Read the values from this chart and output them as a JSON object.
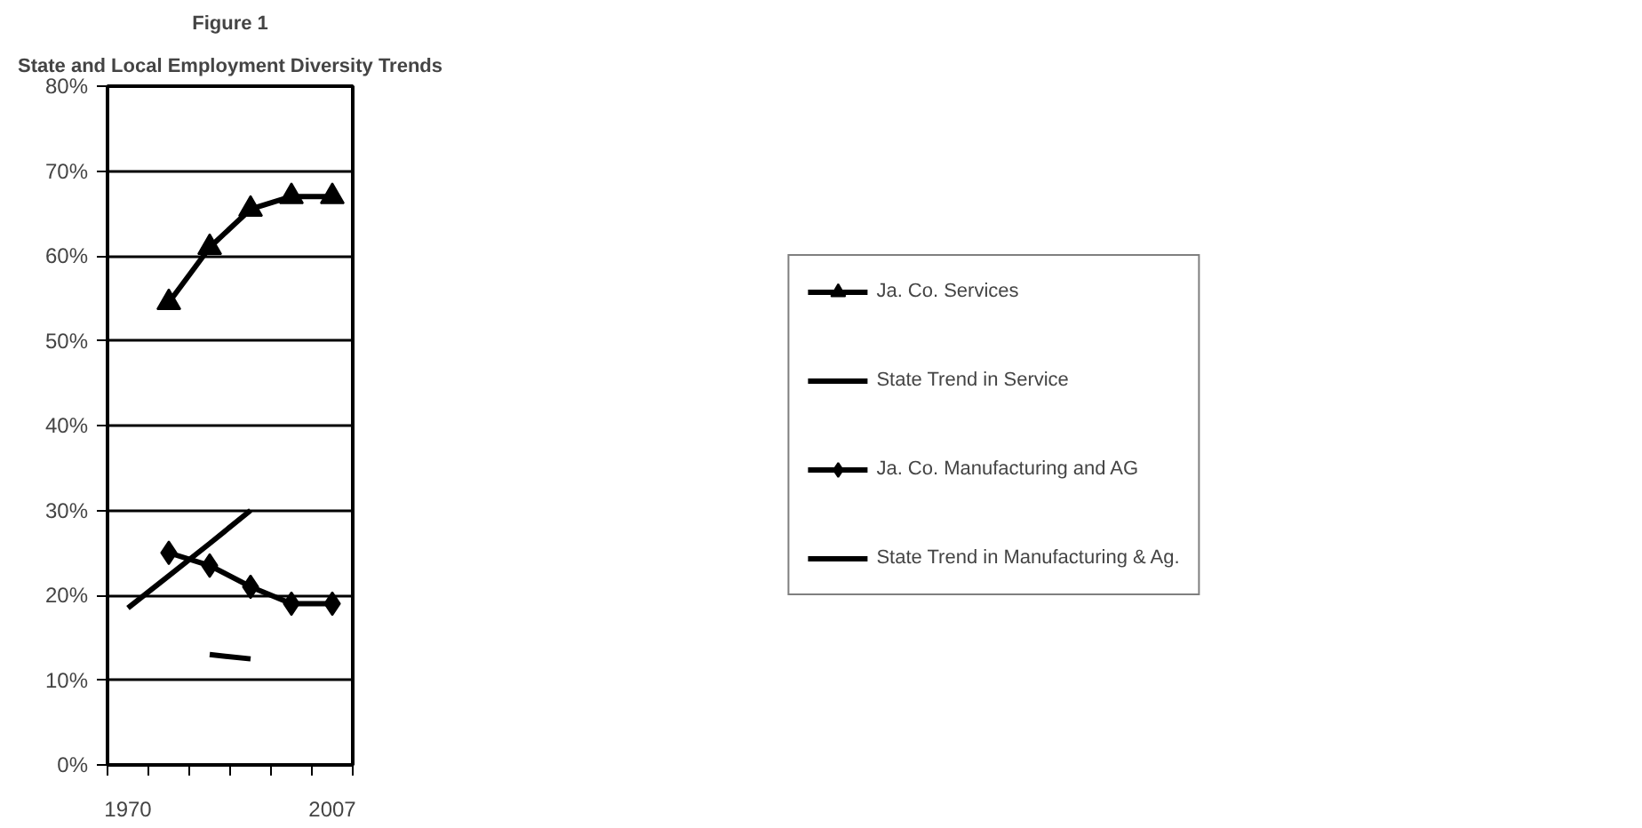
{
  "chart_data": {
    "type": "line",
    "title": "Figure 1",
    "subtitle": "State and Local Employment Diversity Trends",
    "categories": [
      "1970",
      null,
      null,
      null,
      null,
      "2007"
    ],
    "series": [
      {
        "name": "Ja. Co. Services",
        "color": "#000000",
        "marker": "triangle",
        "values": [
          null,
          54.5,
          61,
          65.5,
          67,
          67
        ]
      },
      {
        "name": "State Trend in Service",
        "color": "#000000",
        "marker": "none",
        "values": [
          18.5,
          22.3,
          26.1,
          30,
          null,
          null
        ]
      },
      {
        "name": "Ja. Co. Manufacturing and AG",
        "color": "#000000",
        "marker": "diamond",
        "values": [
          null,
          25,
          23.5,
          21,
          19,
          19
        ]
      },
      {
        "name": "State Trend in Manufacturing & Ag.",
        "color": "#000000",
        "marker": "none",
        "values": [
          null,
          null,
          13,
          12.5,
          null,
          null
        ]
      }
    ],
    "ylim": [
      0,
      80
    ],
    "yticks": [
      {
        "value": 0,
        "label": "0%"
      },
      {
        "value": 10,
        "label": "10%"
      },
      {
        "value": 20,
        "label": "20%"
      },
      {
        "value": 30,
        "label": "30%"
      },
      {
        "value": 40,
        "label": "40%"
      },
      {
        "value": 50,
        "label": "50%"
      },
      {
        "value": 60,
        "label": "60%"
      },
      {
        "value": 70,
        "label": "70%"
      },
      {
        "value": 80,
        "label": "80%"
      }
    ],
    "grid": "y",
    "legend": "right",
    "line_style": "solid"
  }
}
